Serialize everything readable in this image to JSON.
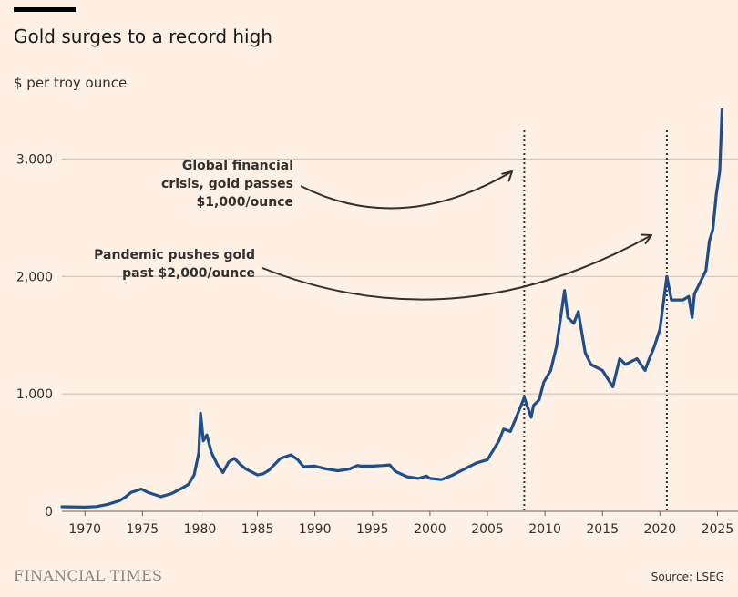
{
  "header": {
    "title": "Gold surges to a record high",
    "subtitle": "$ per troy ounce"
  },
  "footer": {
    "brand": "FINANCIAL TIMES",
    "source": "Source: LSEG"
  },
  "colors": {
    "background": "#fff1e5",
    "line": "#1f4e8c",
    "grid": "#c9bdb2",
    "annotation": "#33302e"
  },
  "chart_data": {
    "type": "line",
    "title": "Gold surges to a record high",
    "ylabel": "$ per troy ounce",
    "xlim": [
      1968,
      2025.6
    ],
    "ylim": [
      0,
      3500
    ],
    "x_ticks": [
      1970,
      1975,
      1980,
      1985,
      1990,
      1995,
      2000,
      2005,
      2010,
      2015,
      2020,
      2025
    ],
    "y_ticks": [
      0,
      1000,
      2000,
      3000
    ],
    "y_tick_labels": [
      "0",
      "1,000",
      "2,000",
      "3,000"
    ],
    "grid": "horizontal",
    "series": [
      {
        "x": [
          1968,
          1970,
          1971,
          1972,
          1973.0,
          1973.5,
          1974.0,
          1974.9,
          1975.5,
          1976.6,
          1977.5,
          1978.5,
          1979.0,
          1979.5,
          1979.9,
          1980.05,
          1980.3,
          1980.6,
          1981.0,
          1981.5,
          1982.0,
          1982.5,
          1983.0,
          1983.5,
          1984.0,
          1985.0,
          1985.5,
          1986.0,
          1987.0,
          1987.9,
          1988.5,
          1989.0,
          1990.0,
          1991.0,
          1992.0,
          1993.0,
          1993.7,
          1994.0,
          1995.0,
          1996.0,
          1996.5,
          1997.0,
          1998.0,
          1999.0,
          1999.7,
          2000.0,
          2001.0,
          2002.0,
          2003.0,
          2004.0,
          2005.0,
          2006.0,
          2006.4,
          2007.0,
          2008.0,
          2008.2,
          2008.8,
          2009.0,
          2009.5,
          2009.9,
          2010.5,
          2011.0,
          2011.7,
          2012.0,
          2012.5,
          2012.9,
          2013.5,
          2014.0,
          2015.0,
          2015.9,
          2016.5,
          2017.0,
          2018.0,
          2018.7,
          2019.0,
          2019.5,
          2020.0,
          2020.6,
          2021.0,
          2021.5,
          2022.0,
          2022.5,
          2022.8,
          2023.0,
          2023.5,
          2024.0,
          2024.3,
          2024.6,
          2024.9,
          2025.2,
          2025.4
        ],
        "y": [
          39,
          36,
          40,
          60,
          90,
          120,
          160,
          190,
          160,
          125,
          150,
          200,
          230,
          310,
          500,
          835,
          600,
          650,
          500,
          400,
          330,
          420,
          450,
          400,
          360,
          310,
          320,
          350,
          450,
          480,
          440,
          380,
          385,
          360,
          345,
          360,
          390,
          385,
          385,
          390,
          395,
          340,
          295,
          280,
          300,
          280,
          270,
          310,
          360,
          410,
          440,
          600,
          700,
          680,
          920,
          970,
          800,
          900,
          950,
          1100,
          1200,
          1400,
          1880,
          1650,
          1600,
          1700,
          1350,
          1250,
          1200,
          1060,
          1300,
          1250,
          1300,
          1200,
          1280,
          1400,
          1550,
          2000,
          1800,
          1800,
          1800,
          1830,
          1650,
          1850,
          1950,
          2050,
          2300,
          2400,
          2700,
          2900,
          3420
        ]
      }
    ],
    "annotations": [
      {
        "x": 2008.2,
        "lines": [
          "Global financial",
          "crisis, gold passes",
          "$1,000/ounce"
        ]
      },
      {
        "x": 2020.6,
        "lines": [
          "Pandemic pushes gold",
          "past $2,000/ounce"
        ]
      }
    ]
  }
}
